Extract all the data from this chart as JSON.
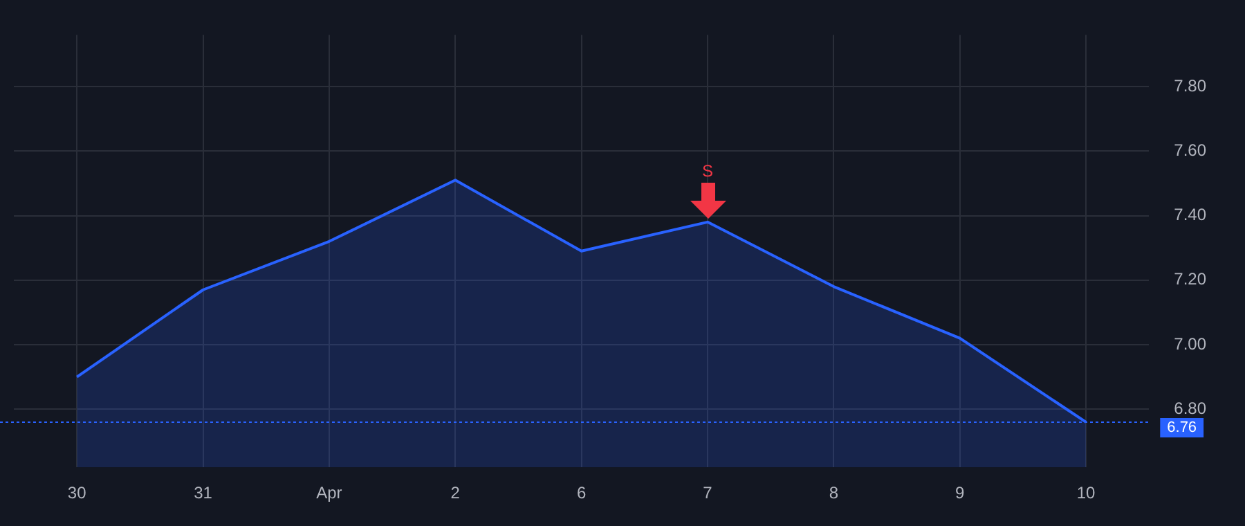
{
  "chart_data": {
    "type": "area",
    "categories": [
      "30",
      "31",
      "Apr",
      "2",
      "6",
      "7",
      "8",
      "9",
      "10"
    ],
    "series": [
      {
        "color": "#2962ff",
        "values": [
          6.9,
          7.17,
          7.32,
          7.51,
          7.29,
          7.38,
          7.18,
          7.02,
          6.76
        ]
      }
    ],
    "ylim": [
      6.62,
      7.96
    ],
    "yticks": [
      {
        "value": 6.8,
        "label": "6.80"
      },
      {
        "value": 7.0,
        "label": "7.00"
      },
      {
        "value": 7.2,
        "label": "7.20"
      },
      {
        "value": 7.4,
        "label": "7.40"
      },
      {
        "value": 7.6,
        "label": "7.60"
      },
      {
        "value": 7.8,
        "label": "7.80"
      }
    ],
    "ref_lines": [
      {
        "axis": "y",
        "value": 6.76,
        "label": "6.76",
        "color": "#2962ff",
        "line_style": "dotted"
      }
    ],
    "annotations": [
      {
        "text": "S",
        "x": "7",
        "y": 7.38
      }
    ],
    "grid": true,
    "legend": false,
    "marker": "none",
    "line_style": "solid"
  }
}
